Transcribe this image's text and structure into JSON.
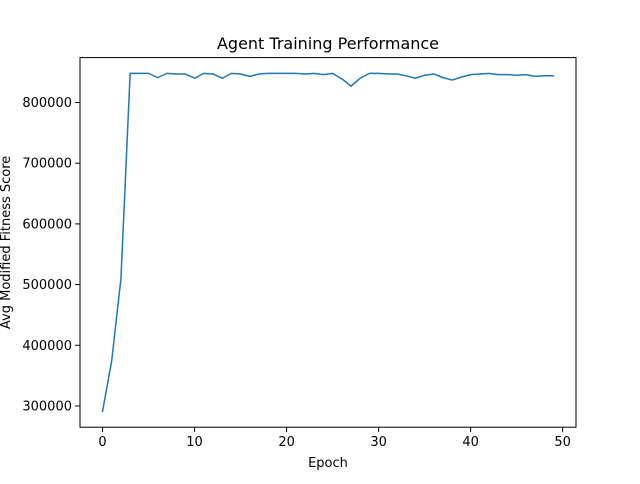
{
  "chart_data": {
    "type": "line",
    "title": "Agent Training Performance",
    "xlabel": "Epoch",
    "ylabel": "Avg Modified Fitness Score",
    "xlim": [
      -2.45,
      51.45
    ],
    "ylim": [
      265000,
      874000
    ],
    "xticks": [
      0,
      10,
      20,
      30,
      40,
      50
    ],
    "yticks": [
      300000,
      400000,
      500000,
      600000,
      700000,
      800000
    ],
    "grid": false,
    "legend": "none",
    "series": [
      {
        "color": "#1f77b4",
        "x": [
          0,
          1,
          2,
          3,
          4,
          5,
          6,
          7,
          8,
          9,
          10,
          11,
          12,
          13,
          14,
          15,
          16,
          17,
          18,
          19,
          20,
          21,
          22,
          23,
          24,
          25,
          26,
          27,
          28,
          29,
          30,
          31,
          32,
          33,
          34,
          35,
          36,
          37,
          38,
          39,
          40,
          41,
          42,
          43,
          44,
          45,
          46,
          47,
          48,
          49
        ],
        "y": [
          291000,
          375000,
          510000,
          848000,
          848000,
          848000,
          841000,
          848000,
          847000,
          847000,
          840000,
          848000,
          847000,
          840000,
          848000,
          847000,
          843000,
          847000,
          848000,
          848000,
          848000,
          848000,
          847000,
          848000,
          846000,
          848000,
          839000,
          827000,
          840000,
          848000,
          848000,
          847000,
          847000,
          844000,
          840000,
          845000,
          847000,
          841000,
          837000,
          842000,
          846000,
          847000,
          848000,
          846000,
          846000,
          845000,
          846000,
          843000,
          844000,
          844000
        ]
      }
    ]
  }
}
